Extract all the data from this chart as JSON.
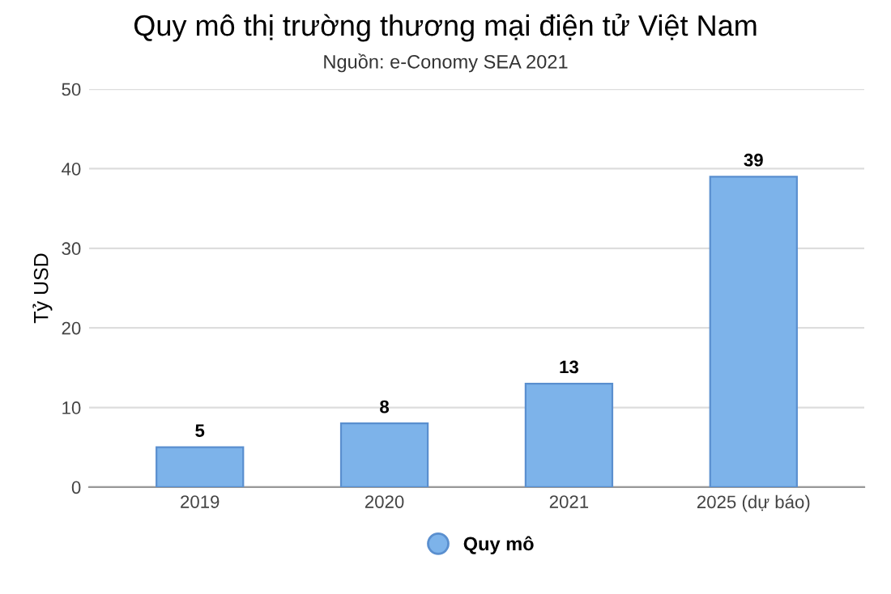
{
  "chart_data": {
    "type": "bar",
    "title": "Quy mô thị trường thương mại điện tử Việt Nam",
    "subtitle": "Nguồn: e-Conomy SEA 2021",
    "ylabel": "Tỷ USD",
    "categories": [
      "2019",
      "2020",
      "2021",
      "2025 (dự báo)"
    ],
    "series": [
      {
        "name": "Quy mô",
        "color": "#7db3ea",
        "values": [
          5,
          8,
          13,
          39
        ]
      }
    ],
    "ylim": [
      0,
      50
    ],
    "yticks": [
      0,
      10,
      20,
      30,
      40,
      50
    ],
    "grid": "y",
    "legend": "bottom",
    "data_labels": true
  }
}
